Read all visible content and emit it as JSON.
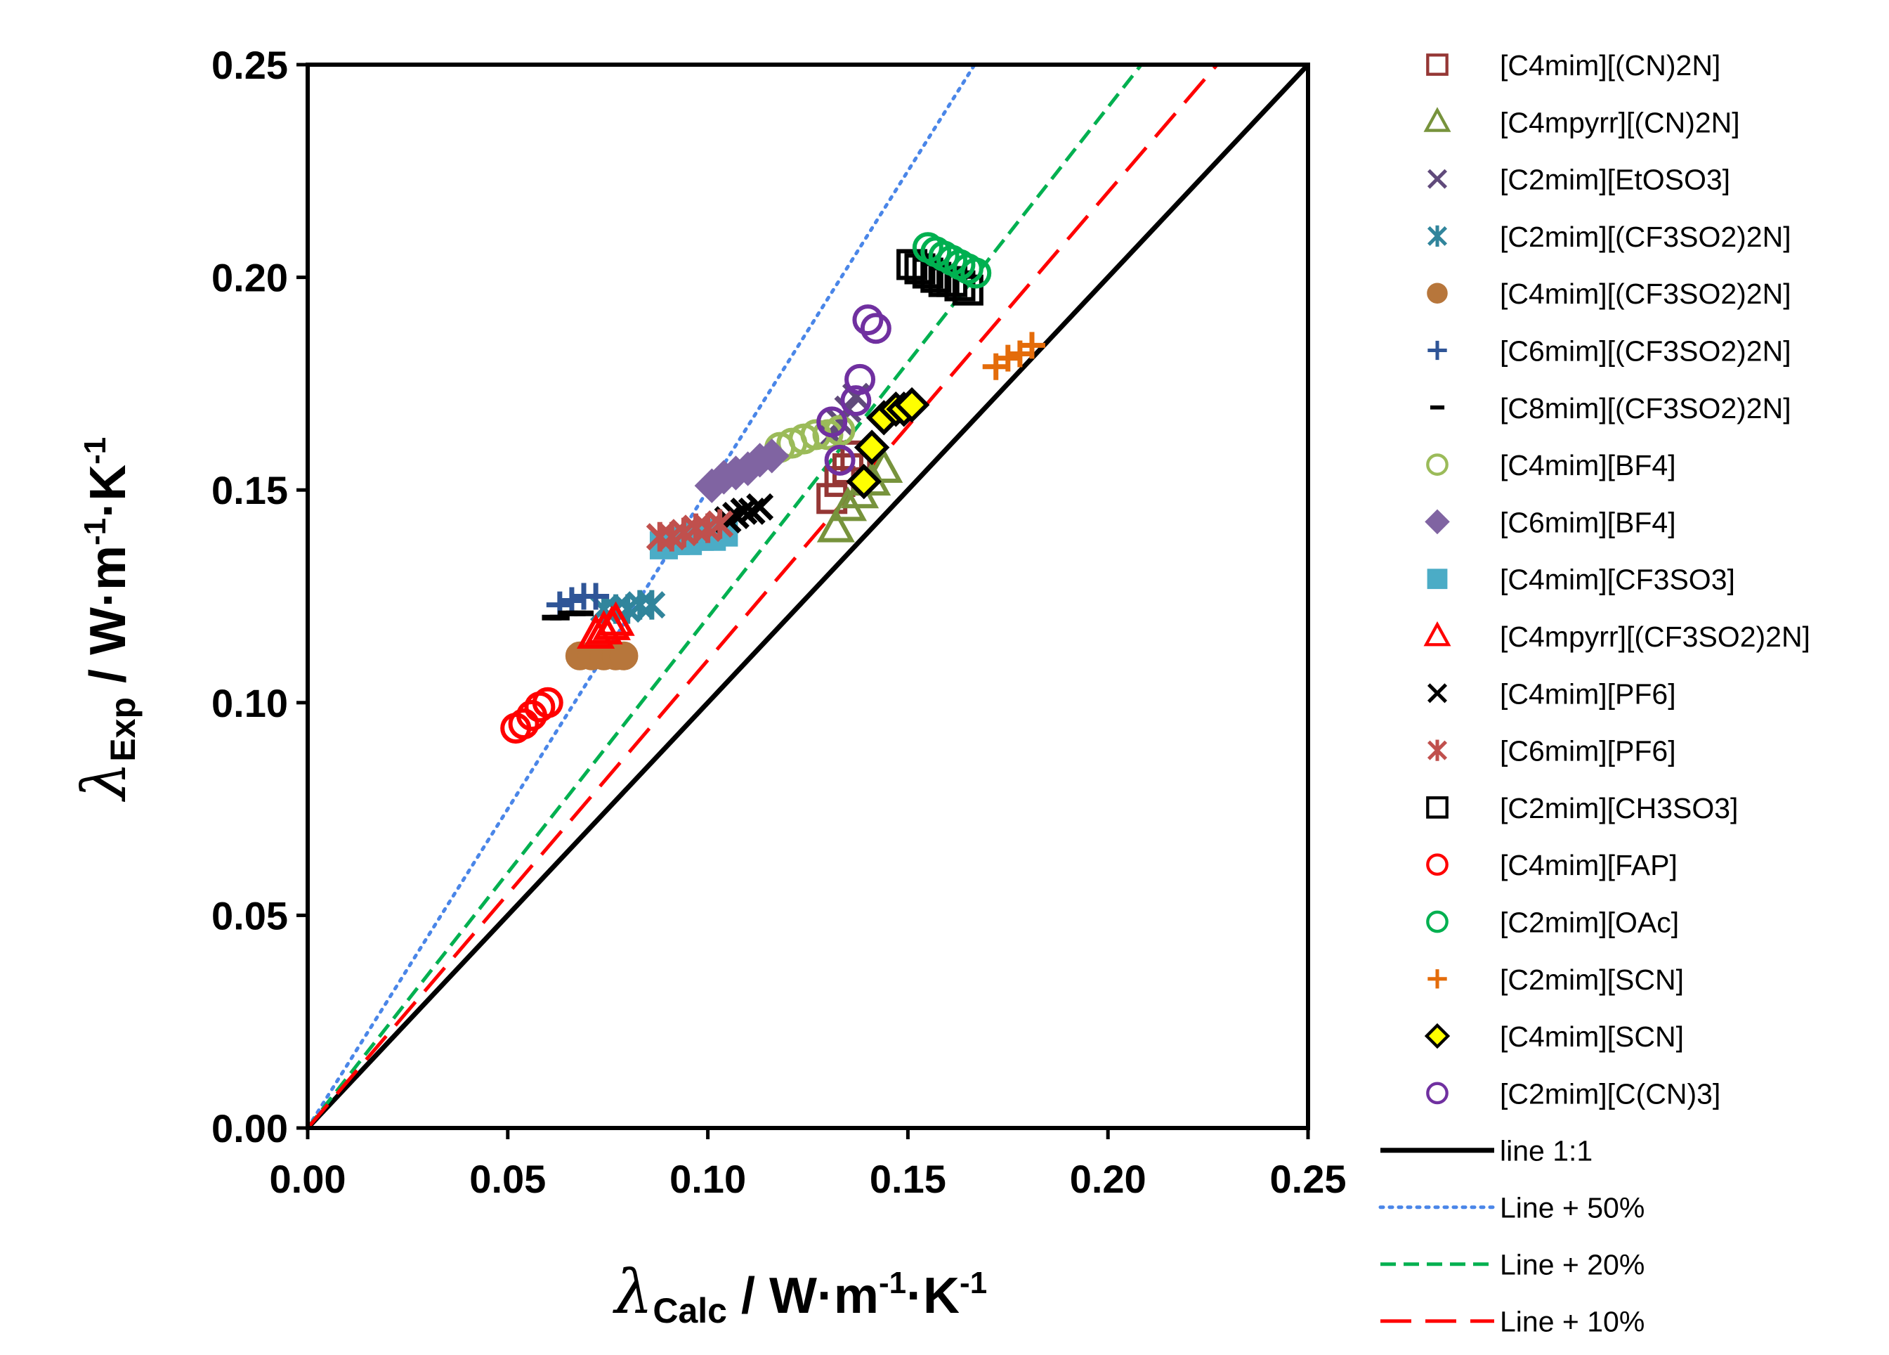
{
  "chart_data": {
    "type": "scatter",
    "xlabel": {
      "symbol": "λ",
      "subscript": "Calc",
      "units": " / W·m",
      "exp1": "-1",
      "mid": "·K",
      "exp2": "-1"
    },
    "ylabel": {
      "symbol": "λ",
      "subscript": "Exp",
      "units": " / W·m",
      "exp1": "-1",
      "mid": "·K",
      "exp2": "-1"
    },
    "xlim": [
      0,
      0.25
    ],
    "ylim": [
      0,
      0.25
    ],
    "xticks": [
      "0.00",
      "0.05",
      "0.10",
      "0.15",
      "0.20",
      "0.25"
    ],
    "yticks": [
      "0.00",
      "0.05",
      "0.10",
      "0.15",
      "0.20",
      "0.25"
    ],
    "grid": false,
    "legend_position": "right",
    "series": [
      {
        "name": "[C4mim][(CN)2N]",
        "marker": "square-open",
        "color": "#953735",
        "points": [
          [
            0.131,
            0.148
          ],
          [
            0.133,
            0.152
          ],
          [
            0.135,
            0.155
          ],
          [
            0.137,
            0.158
          ]
        ]
      },
      {
        "name": "[C4mpyrr][(CN)2N]",
        "marker": "triangle-open",
        "color": "#77933C",
        "points": [
          [
            0.132,
            0.141
          ],
          [
            0.135,
            0.146
          ],
          [
            0.138,
            0.149
          ],
          [
            0.141,
            0.152
          ],
          [
            0.144,
            0.155
          ]
        ]
      },
      {
        "name": "[C2mim][EtOSO3]",
        "marker": "x",
        "color": "#604A7B",
        "points": [
          [
            0.131,
            0.163
          ],
          [
            0.133,
            0.166
          ],
          [
            0.135,
            0.169
          ],
          [
            0.137,
            0.172
          ]
        ]
      },
      {
        "name": "[C2mim][(CF3SO2)2N]",
        "marker": "star",
        "color": "#31859C",
        "points": [
          [
            0.074,
            0.122
          ],
          [
            0.077,
            0.122
          ],
          [
            0.08,
            0.122
          ],
          [
            0.083,
            0.123
          ],
          [
            0.086,
            0.123
          ]
        ]
      },
      {
        "name": "[C4mim][(CF3SO2)2N]",
        "marker": "circle-filled",
        "color": "#B7763B",
        "points": [
          [
            0.068,
            0.111
          ],
          [
            0.071,
            0.111
          ],
          [
            0.074,
            0.111
          ],
          [
            0.077,
            0.111
          ],
          [
            0.079,
            0.111
          ]
        ]
      },
      {
        "name": "[C6mim][(CF3SO2)2N]",
        "marker": "plus",
        "color": "#2F5597",
        "points": [
          [
            0.063,
            0.123
          ],
          [
            0.066,
            0.124
          ],
          [
            0.069,
            0.125
          ],
          [
            0.072,
            0.125
          ]
        ]
      },
      {
        "name": "[C8mim][(CF3SO2)2N]",
        "marker": "dash",
        "color": "#000000",
        "points": [
          [
            0.061,
            0.12
          ],
          [
            0.063,
            0.12
          ],
          [
            0.065,
            0.121
          ],
          [
            0.067,
            0.121
          ],
          [
            0.069,
            0.121
          ]
        ]
      },
      {
        "name": "[C4mim][BF4]",
        "marker": "circle-open",
        "color": "#9BBB59",
        "points": [
          [
            0.118,
            0.16
          ],
          [
            0.121,
            0.161
          ],
          [
            0.124,
            0.162
          ],
          [
            0.127,
            0.163
          ],
          [
            0.13,
            0.163
          ],
          [
            0.133,
            0.164
          ]
        ]
      },
      {
        "name": "[C6mim][BF4]",
        "marker": "diamond-filled",
        "color": "#8064A2",
        "points": [
          [
            0.101,
            0.151
          ],
          [
            0.104,
            0.153
          ],
          [
            0.107,
            0.154
          ],
          [
            0.11,
            0.155
          ],
          [
            0.113,
            0.157
          ],
          [
            0.116,
            0.158
          ]
        ]
      },
      {
        "name": "[C4mim][CF3SO3]",
        "marker": "square-filled",
        "color": "#4BACC6",
        "points": [
          [
            0.089,
            0.137
          ],
          [
            0.092,
            0.138
          ],
          [
            0.095,
            0.138
          ],
          [
            0.098,
            0.139
          ],
          [
            0.101,
            0.139
          ],
          [
            0.104,
            0.14
          ]
        ]
      },
      {
        "name": "[C4mpyrr][(CF3SO2)2N]",
        "marker": "triangle-open",
        "color": "#FF0000",
        "points": [
          [
            0.072,
            0.116
          ],
          [
            0.074,
            0.117
          ],
          [
            0.076,
            0.118
          ],
          [
            0.077,
            0.119
          ]
        ]
      },
      {
        "name": "[C4mim][PF6]",
        "marker": "x",
        "color": "#000000",
        "points": [
          [
            0.105,
            0.143
          ],
          [
            0.107,
            0.144
          ],
          [
            0.109,
            0.145
          ],
          [
            0.111,
            0.145
          ],
          [
            0.113,
            0.146
          ]
        ]
      },
      {
        "name": "[C6mim][PF6]",
        "marker": "star",
        "color": "#C0504D",
        "points": [
          [
            0.088,
            0.139
          ],
          [
            0.091,
            0.139
          ],
          [
            0.094,
            0.14
          ],
          [
            0.097,
            0.141
          ],
          [
            0.1,
            0.141
          ],
          [
            0.103,
            0.142
          ]
        ]
      },
      {
        "name": "[C2mim][CH3SO3]",
        "marker": "square-open",
        "color": "#000000",
        "points": [
          [
            0.151,
            0.203
          ],
          [
            0.153,
            0.202
          ],
          [
            0.155,
            0.201
          ],
          [
            0.157,
            0.2
          ],
          [
            0.159,
            0.199
          ],
          [
            0.161,
            0.199
          ],
          [
            0.163,
            0.198
          ],
          [
            0.165,
            0.197
          ]
        ]
      },
      {
        "name": "[C4mim][FAP]",
        "marker": "circle-open",
        "color": "#FF0000",
        "points": [
          [
            0.052,
            0.094
          ],
          [
            0.054,
            0.095
          ],
          [
            0.056,
            0.097
          ],
          [
            0.058,
            0.099
          ],
          [
            0.06,
            0.1
          ]
        ]
      },
      {
        "name": "[C2mim][OAc]",
        "marker": "circle-open",
        "color": "#00B050",
        "points": [
          [
            0.155,
            0.207
          ],
          [
            0.157,
            0.206
          ],
          [
            0.159,
            0.205
          ],
          [
            0.161,
            0.204
          ],
          [
            0.163,
            0.203
          ],
          [
            0.165,
            0.202
          ],
          [
            0.167,
            0.201
          ]
        ]
      },
      {
        "name": "[C2mim][SCN]",
        "marker": "plus",
        "color": "#E46C0A",
        "points": [
          [
            0.172,
            0.179
          ],
          [
            0.175,
            0.181
          ],
          [
            0.178,
            0.182
          ],
          [
            0.181,
            0.184
          ]
        ]
      },
      {
        "name": "[C4mim][SCN]",
        "marker": "diamond-yellow",
        "color": "#000000",
        "points": [
          [
            0.139,
            0.152
          ],
          [
            0.141,
            0.16
          ],
          [
            0.144,
            0.167
          ],
          [
            0.147,
            0.169
          ],
          [
            0.149,
            0.169
          ],
          [
            0.151,
            0.17
          ]
        ]
      },
      {
        "name": "[C2mim][C(CN)3]",
        "marker": "circle-open",
        "color": "#7030A0",
        "points": [
          [
            0.131,
            0.166
          ],
          [
            0.133,
            0.157
          ],
          [
            0.137,
            0.171
          ],
          [
            0.138,
            0.176
          ],
          [
            0.14,
            0.19
          ],
          [
            0.142,
            0.188
          ]
        ]
      }
    ],
    "reference_lines": [
      {
        "name": "line 1:1",
        "factor": 1.0,
        "style": "solid",
        "color": "#000000"
      },
      {
        "name": "Line + 50%",
        "factor": 1.5,
        "style": "dotted",
        "color": "#4A86E8"
      },
      {
        "name": "Line + 20%",
        "factor": 1.2,
        "style": "dashed",
        "color": "#00B050"
      },
      {
        "name": "Line + 10%",
        "factor": 1.1,
        "style": "longdash",
        "color": "#FF0000"
      }
    ]
  }
}
